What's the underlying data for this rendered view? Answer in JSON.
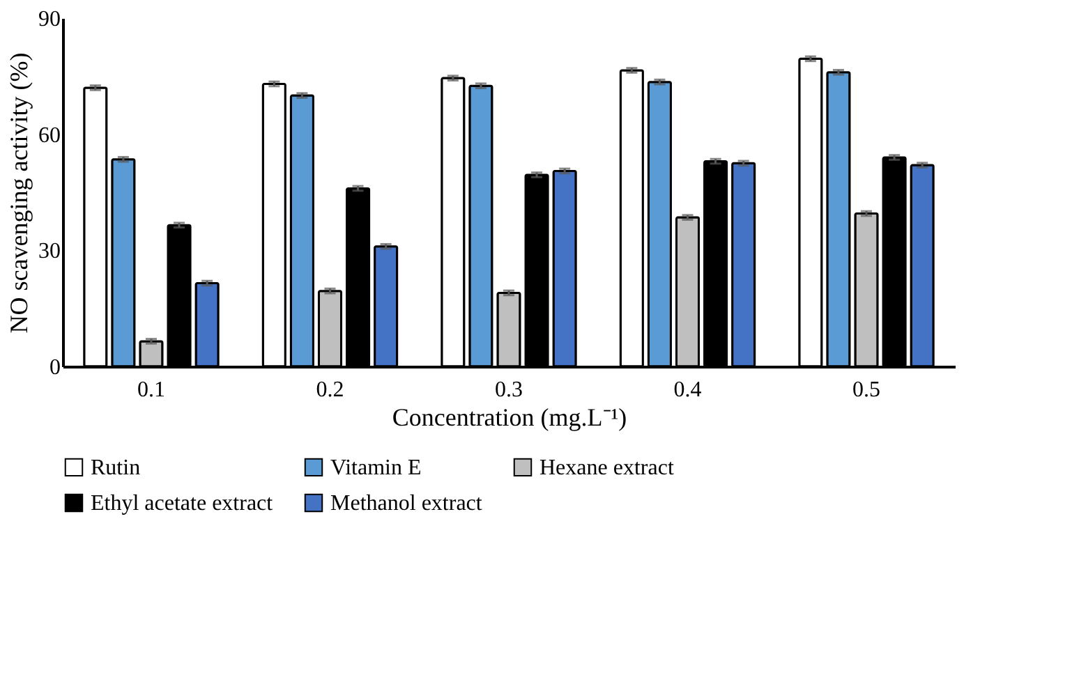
{
  "chart_data": {
    "type": "bar",
    "xlabel": "Concentration (mg.L⁻¹)",
    "ylabel": "NO scavenging activity (%)",
    "categories": [
      "0.1",
      "0.2",
      "0.3",
      "0.4",
      "0.5"
    ],
    "series": [
      {
        "name": "Rutin",
        "color": "#ffffff",
        "values": [
          72,
          73,
          74.5,
          76.5,
          79.5
        ],
        "errors": [
          0.6,
          0.6,
          0.6,
          0.6,
          0.6
        ]
      },
      {
        "name": "Vitamin E",
        "color": "#5b9bd5",
        "values": [
          53.5,
          70,
          72.5,
          73.5,
          76
        ],
        "errors": [
          0.6,
          0.6,
          0.6,
          0.6,
          0.6
        ]
      },
      {
        "name": "Hexane extract",
        "color": "#bfbfbf",
        "values": [
          6.5,
          19.5,
          19,
          38.5,
          39.5
        ],
        "errors": [
          0.6,
          0.6,
          0.6,
          0.6,
          0.6
        ]
      },
      {
        "name": "Ethyl acetate extract",
        "color": "#000000",
        "values": [
          36.5,
          46,
          49.5,
          53,
          54
        ],
        "errors": [
          0.6,
          0.6,
          0.6,
          0.6,
          0.6
        ]
      },
      {
        "name": "Methanol extract",
        "color": "#4472c4",
        "values": [
          21.5,
          31,
          50.5,
          52.5,
          52
        ],
        "errors": [
          0.6,
          0.6,
          0.6,
          0.6,
          0.6
        ]
      }
    ],
    "ylim": [
      0,
      90
    ],
    "yticks": [
      0,
      30,
      60,
      90
    ],
    "grid": false,
    "legend": "bottom"
  }
}
